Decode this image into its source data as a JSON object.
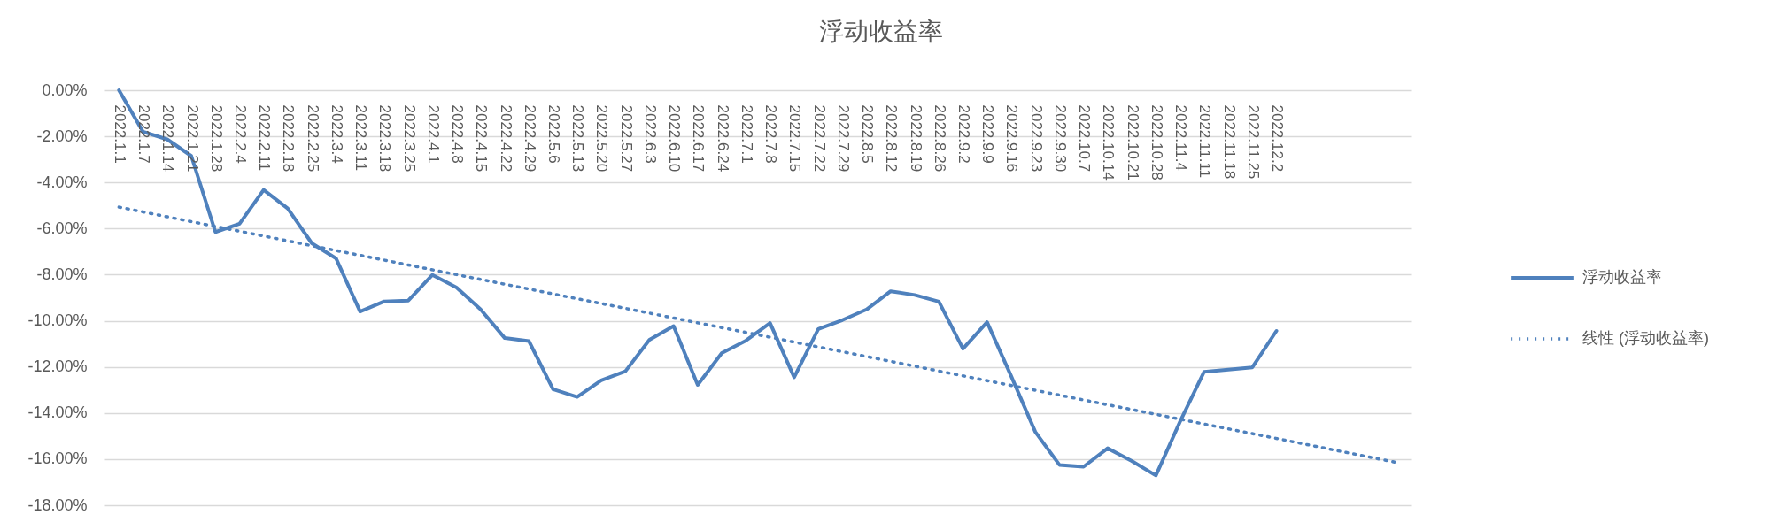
{
  "chart_data": {
    "type": "line",
    "title": "浮动收益率",
    "categories": [
      "2022.1.1",
      "2022.1.7",
      "2022.1.14",
      "2022.1.21",
      "2022.1.28",
      "2022.2.4",
      "2022.2.11",
      "2022.2.18",
      "2022.2.25",
      "2022.3.4",
      "2022.3.11",
      "2022.3.18",
      "2022.3.25",
      "2022.4.1",
      "2022.4.8",
      "2022.4.15",
      "2022.4.22",
      "2022.4.29",
      "2022.5.6",
      "2022.5.13",
      "2022.5.20",
      "2022.5.27",
      "2022.6.3",
      "2022.6.10",
      "2022.6.17",
      "2022.6.24",
      "2022.7.1",
      "2022.7.8",
      "2022.7.15",
      "2022.7.22",
      "2022.7.29",
      "2022.8.5",
      "2022.8.12",
      "2022.8.19",
      "2022.8.26",
      "2022.9.2",
      "2022.9.9",
      "2022.9.16",
      "2022.9.23",
      "2022.9.30",
      "2022.10.7",
      "2022.10.14",
      "2022.10.21",
      "2022.10.28",
      "2022.11.4",
      "2022.11.11",
      "2022.11.18",
      "2022.11.25",
      "2022.12.2",
      null,
      null,
      null,
      null,
      null
    ],
    "series": [
      {
        "name": "浮动收益率",
        "color": "#4f81bd",
        "line_style": "solid",
        "values": [
          0.0,
          -1.8,
          -2.13,
          -2.85,
          -6.15,
          -5.79,
          -4.32,
          -5.13,
          -6.64,
          -7.29,
          -9.6,
          -9.16,
          -9.12,
          -8.01,
          -8.56,
          -9.51,
          -10.75,
          -10.88,
          -12.97,
          -13.3,
          -12.58,
          -12.19,
          -10.82,
          -10.23,
          -12.78,
          -11.4,
          -10.86,
          -10.1,
          -12.45,
          -10.36,
          -9.97,
          -9.51,
          -8.72,
          -8.88,
          -9.17,
          -11.21,
          -10.06,
          -12.4,
          -14.82,
          -16.25,
          -16.33,
          -15.53,
          -16.08,
          -16.71,
          -14.38,
          -12.21,
          -12.12,
          -12.02,
          -10.44,
          null,
          null,
          null,
          null,
          null
        ]
      },
      {
        "name": "线性 (浮动收益率)",
        "color": "#4f81bd",
        "line_style": "dotted",
        "type": "line",
        "values": [
          -5.07,
          null,
          null,
          null,
          null,
          null,
          null,
          null,
          null,
          null,
          null,
          null,
          null,
          null,
          null,
          null,
          null,
          null,
          null,
          null,
          null,
          null,
          null,
          null,
          null,
          null,
          null,
          null,
          null,
          null,
          null,
          null,
          null,
          null,
          null,
          null,
          null,
          null,
          null,
          null,
          null,
          null,
          null,
          null,
          null,
          null,
          null,
          null,
          null,
          null,
          null,
          null,
          null,
          -16.15
        ]
      }
    ],
    "ylim": [
      -18,
      0
    ],
    "yticks": [
      {
        "value": -18,
        "label": "-18.00%"
      },
      {
        "value": -16,
        "label": "-16.00%"
      },
      {
        "value": -14,
        "label": "-14.00%"
      },
      {
        "value": -12,
        "label": "-12.00%"
      },
      {
        "value": -10,
        "label": "-10.00%"
      },
      {
        "value": -8,
        "label": "-8.00%"
      },
      {
        "value": -6,
        "label": "-6.00%"
      },
      {
        "value": -4,
        "label": "-4.00%"
      },
      {
        "value": -2,
        "label": "-2.00%"
      },
      {
        "value": 0,
        "label": "0.00%"
      }
    ],
    "grid": "y",
    "legend": "right"
  }
}
